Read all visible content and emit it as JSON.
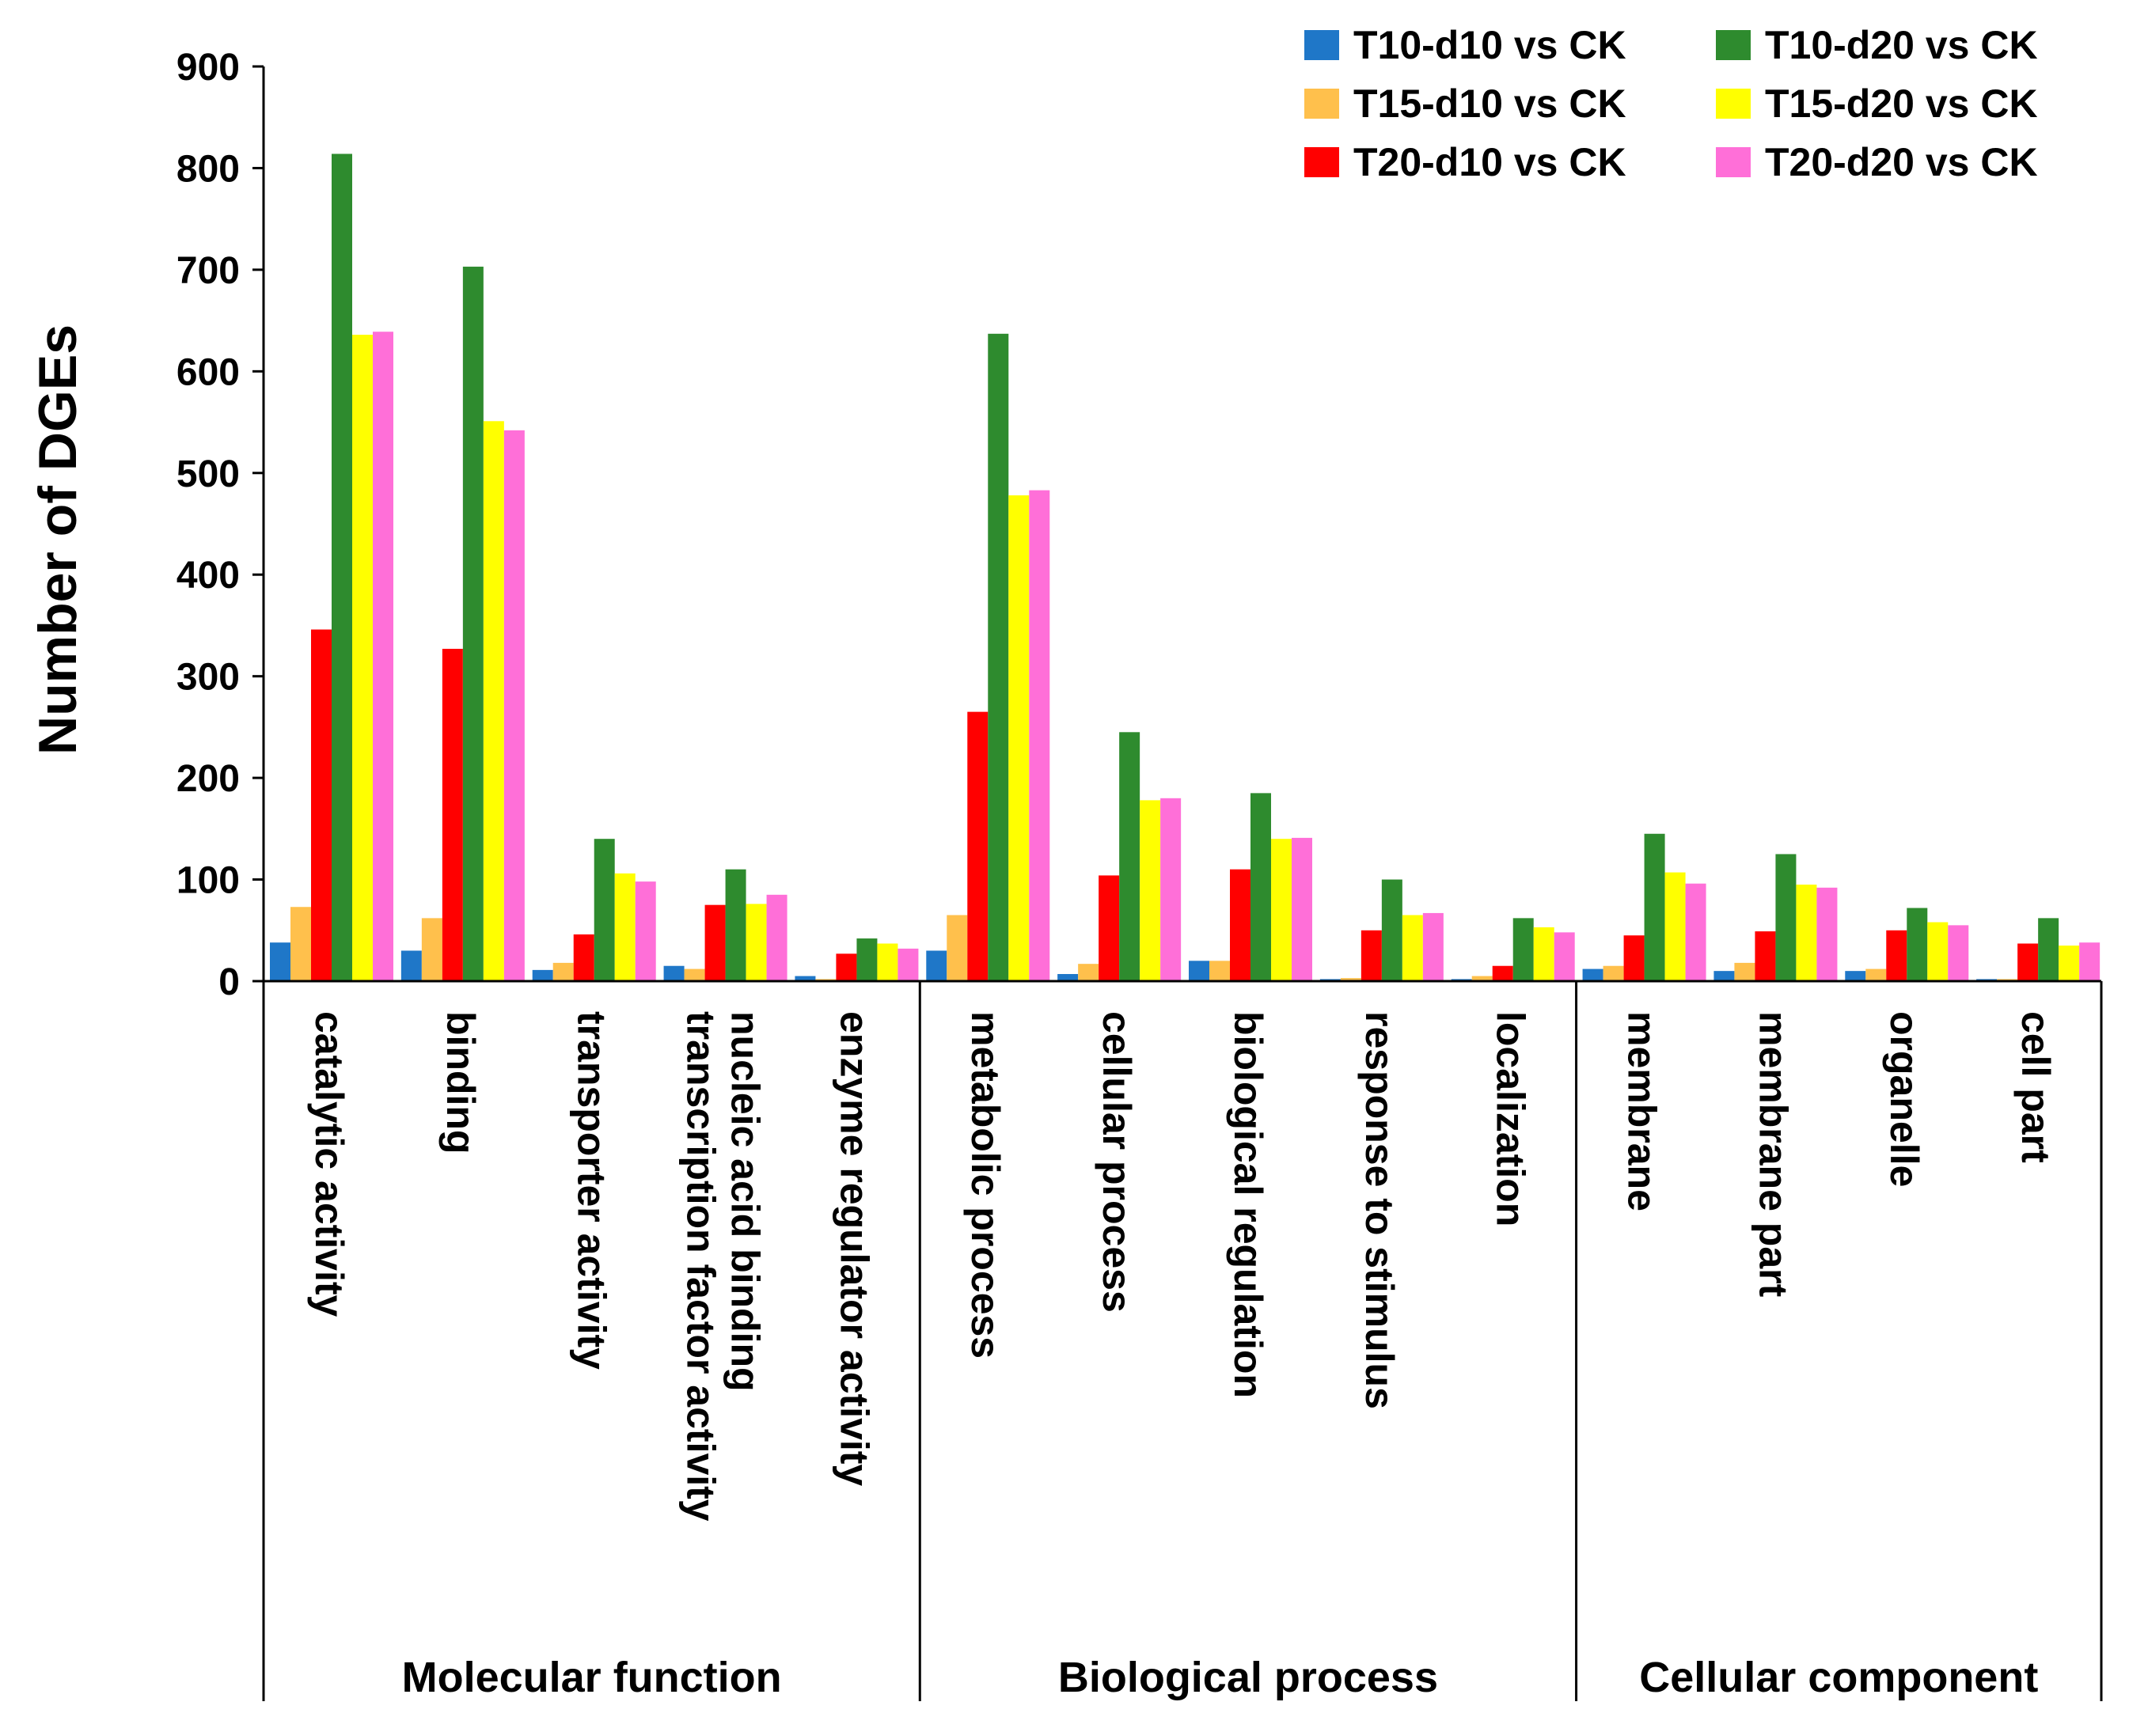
{
  "chart_data": {
    "type": "bar",
    "title": "",
    "xlabel": "",
    "ylabel": "Number of DGEs",
    "ylim": [
      0,
      900
    ],
    "yticks": [
      0,
      100,
      200,
      300,
      400,
      500,
      600,
      700,
      800,
      900
    ],
    "grid": false,
    "legend_position": "top-right",
    "categories": [
      "catalytic activity",
      "binding",
      "transporter activity",
      "nucleic acid binding\ntranscription factor activity",
      "enzyme regulator activity",
      "metabolic process",
      "cellular process",
      "biological regulation",
      "response to stimulus",
      "localization",
      "membrane",
      "membrane part",
      "organelle",
      "cell part"
    ],
    "groups": [
      {
        "name": "Molecular function",
        "start": 0,
        "end": 4
      },
      {
        "name": "Biological process",
        "start": 5,
        "end": 9
      },
      {
        "name": "Cellular component",
        "start": 10,
        "end": 13
      }
    ],
    "series": [
      {
        "name": "T10-d10 vs CK",
        "color": "#1F77C8",
        "values": [
          38,
          30,
          11,
          15,
          5,
          30,
          7,
          20,
          2,
          2,
          12,
          10,
          10,
          2
        ]
      },
      {
        "name": "T15-d10 vs CK",
        "color": "#FFC04C",
        "values": [
          73,
          62,
          18,
          12,
          2,
          65,
          17,
          20,
          3,
          5,
          15,
          18,
          12,
          2
        ]
      },
      {
        "name": "T20-d10 vs CK",
        "color": "#FF0000",
        "values": [
          346,
          327,
          46,
          75,
          27,
          265,
          104,
          110,
          50,
          15,
          45,
          49,
          50,
          37
        ]
      },
      {
        "name": "T10-d20 vs CK",
        "color": "#2E8B2E",
        "values": [
          814,
          703,
          140,
          110,
          42,
          637,
          245,
          185,
          100,
          62,
          145,
          125,
          72,
          62
        ]
      },
      {
        "name": "T15-d20 vs CK",
        "color": "#FFFF00",
        "values": [
          636,
          551,
          106,
          76,
          37,
          478,
          178,
          140,
          65,
          53,
          107,
          95,
          58,
          35
        ]
      },
      {
        "name": "T20-d20 vs CK",
        "color": "#FF6FD8",
        "values": [
          639,
          542,
          98,
          85,
          32,
          483,
          180,
          141,
          67,
          48,
          96,
          92,
          55,
          38
        ]
      }
    ]
  }
}
